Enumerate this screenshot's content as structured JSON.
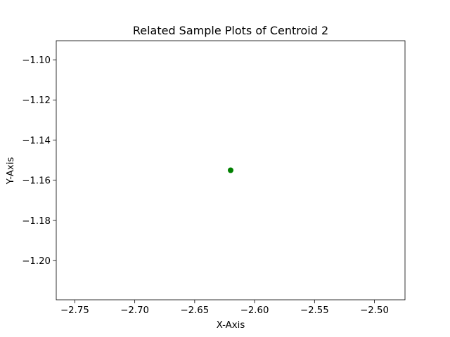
{
  "chart_data": {
    "type": "scatter",
    "title": "Related Sample Plots of Centroid 2",
    "xlabel": "X-Axis",
    "ylabel": "Y-Axis",
    "xlim": [
      -2.7655,
      -2.4745
    ],
    "ylim": [
      -1.2195,
      -1.0905
    ],
    "x_ticks": [
      -2.75,
      -2.7,
      -2.65,
      -2.6,
      -2.55,
      -2.5
    ],
    "x_tick_labels": [
      "−2.75",
      "−2.70",
      "−2.65",
      "−2.60",
      "−2.55",
      "−2.50"
    ],
    "y_ticks": [
      -1.1,
      -1.12,
      -1.14,
      -1.16,
      -1.18,
      -1.2
    ],
    "y_tick_labels": [
      "−1.10",
      "−1.12",
      "−1.14",
      "−1.16",
      "−1.18",
      "−1.20"
    ],
    "grid": false,
    "points": [
      {
        "x": -2.62,
        "y": -1.155,
        "color": "#008000"
      }
    ]
  }
}
